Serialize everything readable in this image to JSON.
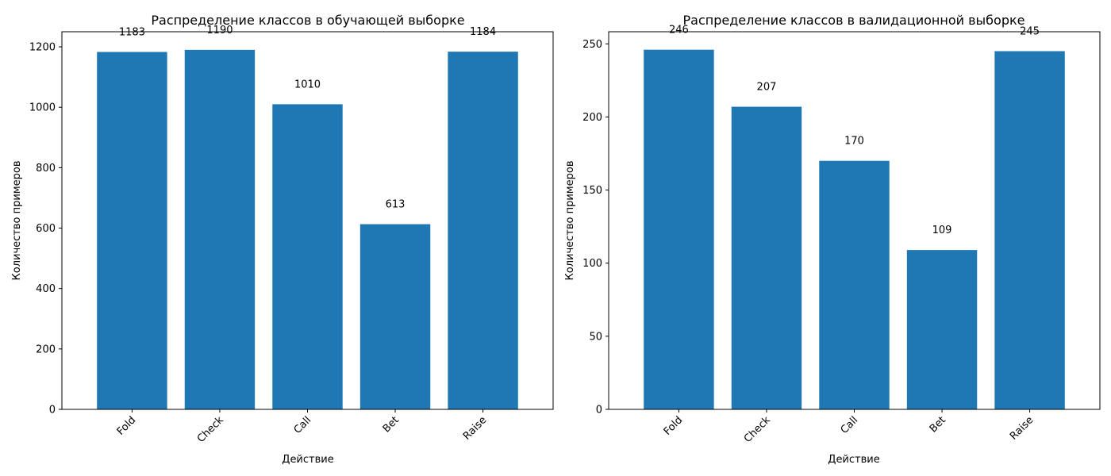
{
  "chart_data": [
    {
      "type": "bar",
      "title": "Распределение классов в обучающей выборке",
      "xlabel": "Действие",
      "ylabel": "Количество примеров",
      "categories": [
        "Fold",
        "Check",
        "Call",
        "Bet",
        "Raise"
      ],
      "values": [
        1183,
        1190,
        1010,
        613,
        1184
      ],
      "value_labels": [
        "1183",
        "1190",
        "1010",
        "613",
        "1184"
      ],
      "ylim": [
        0,
        1250
      ],
      "yticks": [
        0,
        200,
        400,
        600,
        800,
        1000,
        1200
      ],
      "ytick_labels": [
        "0",
        "200",
        "400",
        "600",
        "800",
        "1000",
        "1200"
      ],
      "bar_color": "#1f77b4",
      "grid": false,
      "legend": false,
      "xtick_rotation_deg": 45
    },
    {
      "type": "bar",
      "title": "Распределение классов в валидационной выборке",
      "xlabel": "Действие",
      "ylabel": "Количество примеров",
      "categories": [
        "Fold",
        "Check",
        "Call",
        "Bet",
        "Raise"
      ],
      "values": [
        246,
        207,
        170,
        109,
        245
      ],
      "value_labels": [
        "246",
        "207",
        "170",
        "109",
        "245"
      ],
      "ylim": [
        0,
        258.3
      ],
      "yticks": [
        0,
        50,
        100,
        150,
        200,
        250
      ],
      "ytick_labels": [
        "0",
        "50",
        "100",
        "150",
        "200",
        "250"
      ],
      "bar_color": "#1f77b4",
      "grid": false,
      "legend": false,
      "xtick_rotation_deg": 45
    }
  ]
}
